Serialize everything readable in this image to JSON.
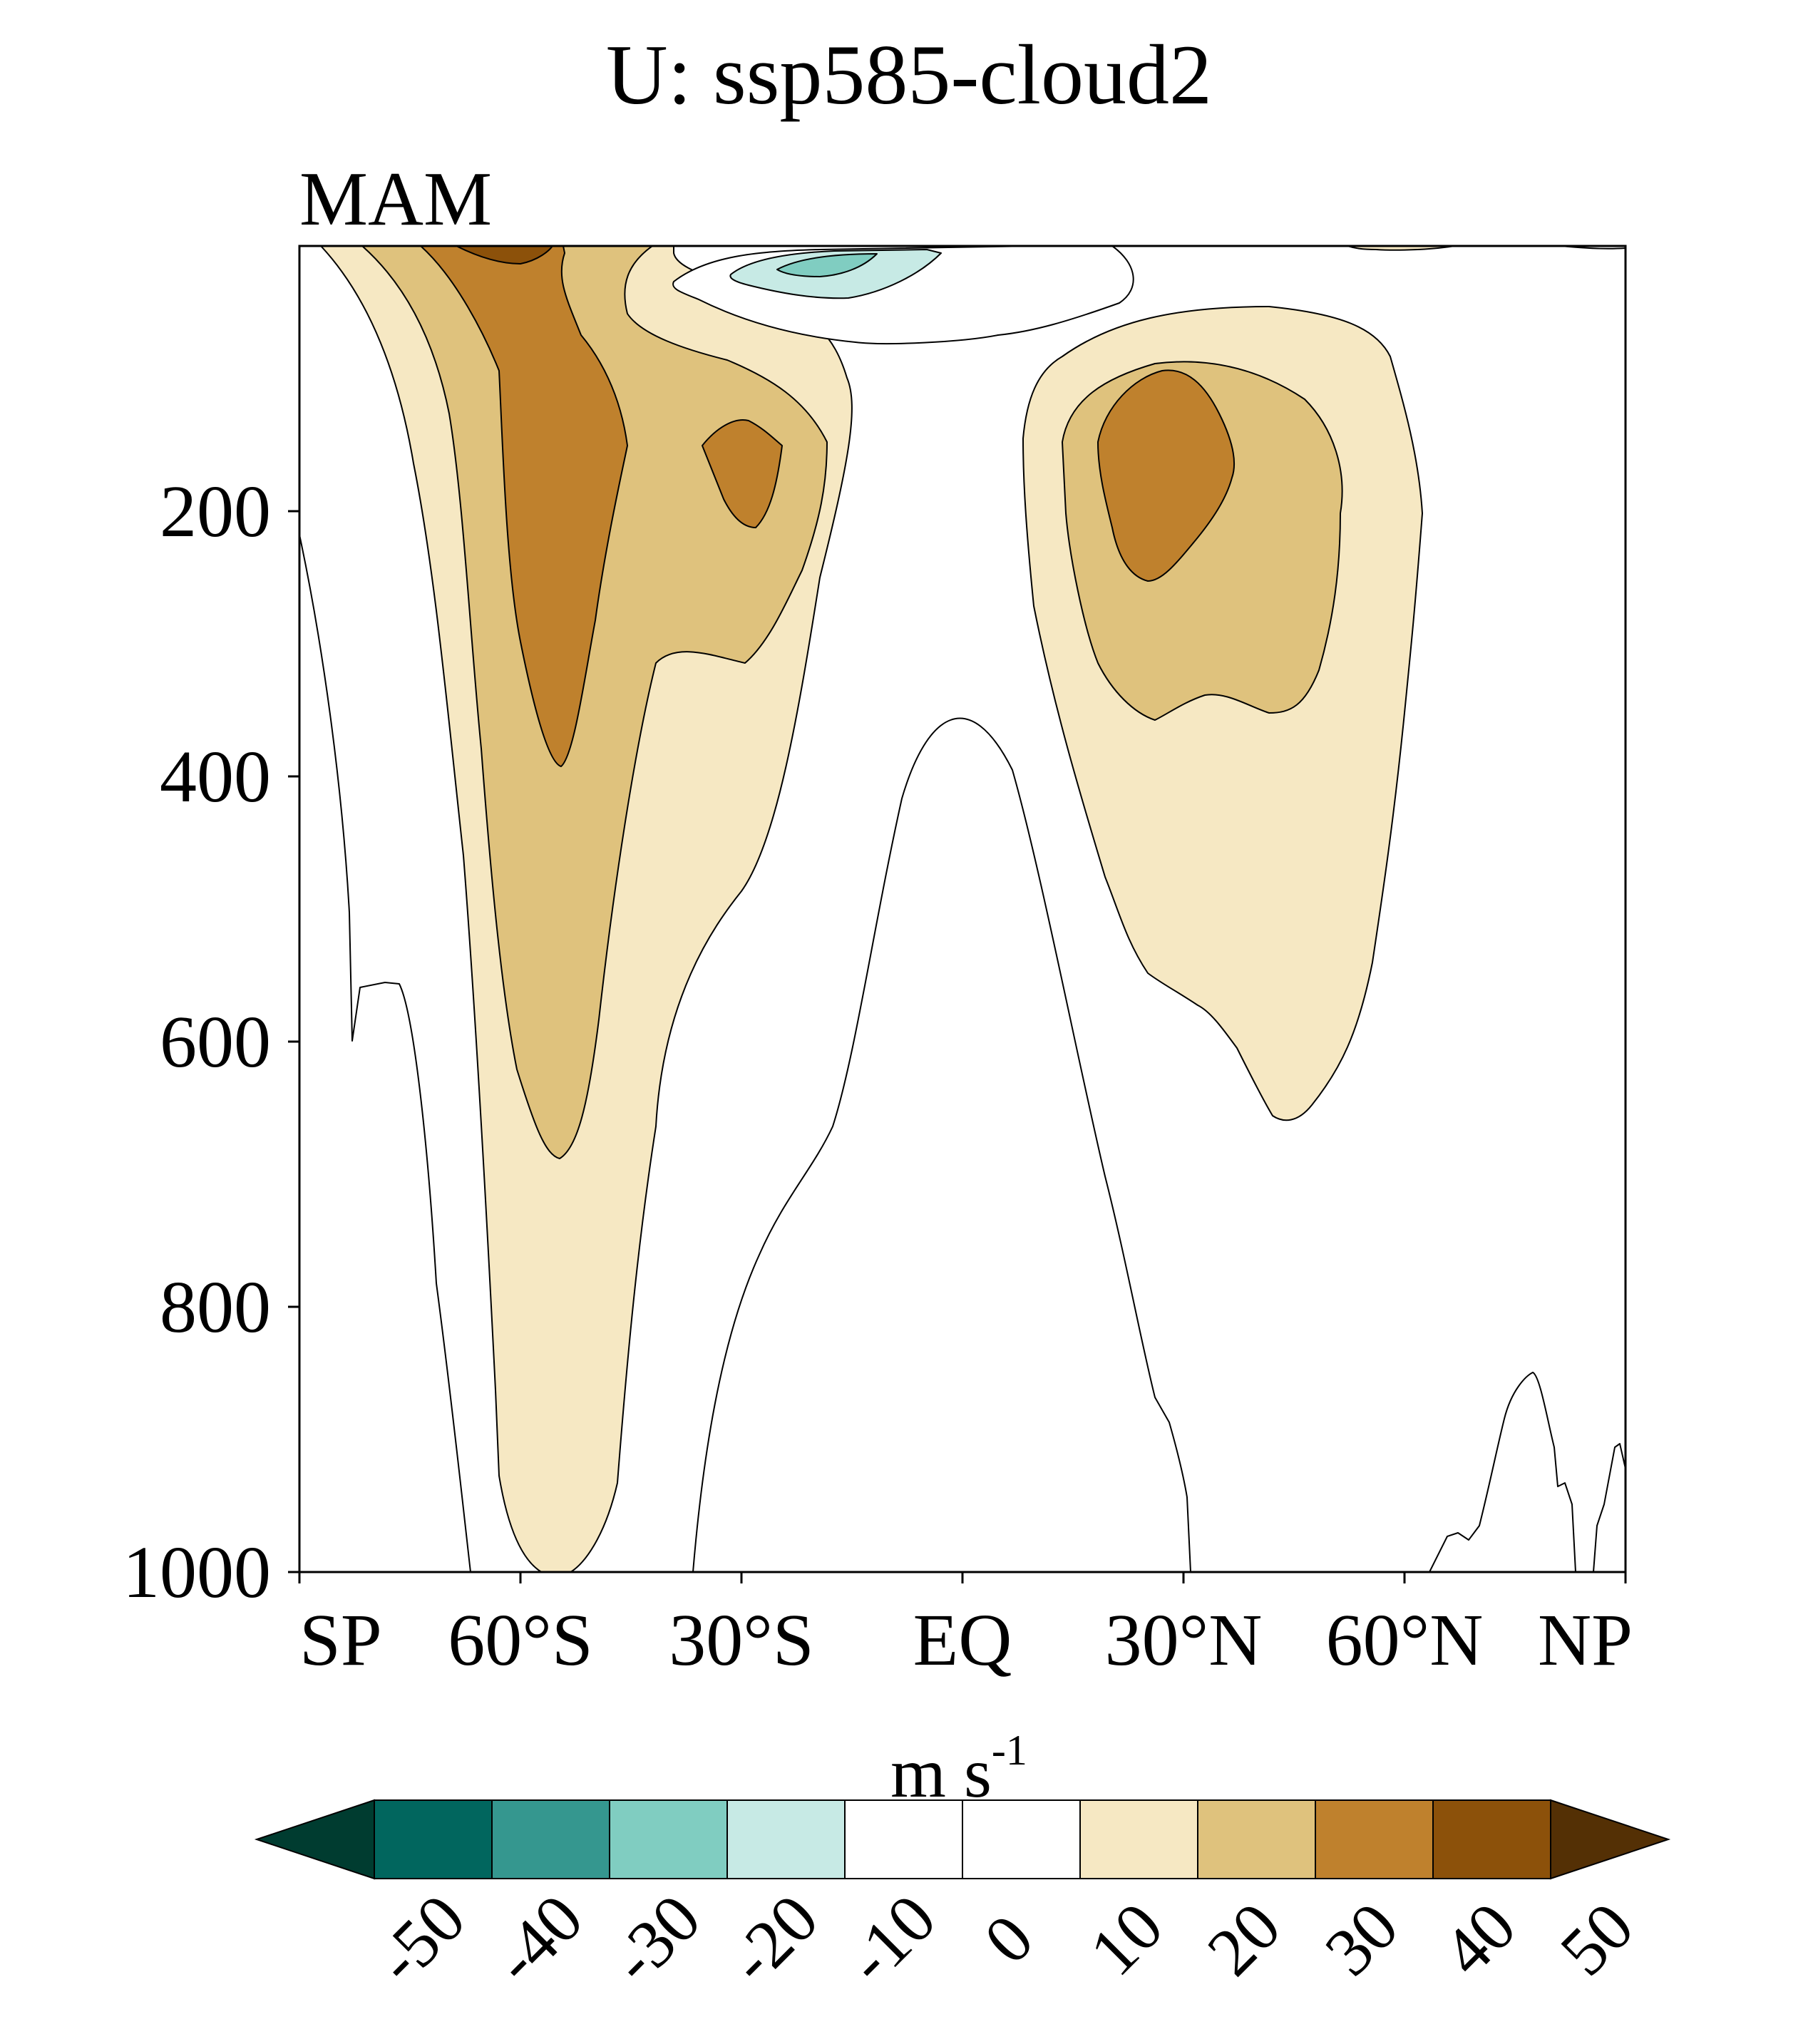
{
  "title": "U: ssp585-cloud2",
  "subtitle": "MAM",
  "colorbar": {
    "unit_base": "m s",
    "unit_exp": "-1",
    "labels": [
      "-50",
      "-40",
      "-30",
      "-20",
      "-10",
      "0",
      "10",
      "20",
      "30",
      "40",
      "50"
    ],
    "colors": [
      "#003c30",
      "#01665e",
      "#35978f",
      "#80cdc1",
      "#c7eae5",
      "#ffffff",
      "#ffffff",
      "#f6e8c3",
      "#dfc27d",
      "#bf812d",
      "#8c510a",
      "#543005"
    ]
  },
  "chart_data": {
    "type": "contour",
    "title": "U: ssp585-cloud2",
    "subtitle": "MAM",
    "variable": "U",
    "units": "m s-1",
    "x_ticks": [
      {
        "value": -90,
        "label": "SP"
      },
      {
        "value": -60,
        "label": "60°S"
      },
      {
        "value": -30,
        "label": "30°S"
      },
      {
        "value": 0,
        "label": "EQ"
      },
      {
        "value": 30,
        "label": "30°N"
      },
      {
        "value": 60,
        "label": "60°N"
      },
      {
        "value": 90,
        "label": "NP"
      }
    ],
    "y_ticks": [
      {
        "value": 200,
        "label": "200"
      },
      {
        "value": 400,
        "label": "400"
      },
      {
        "value": 600,
        "label": "600"
      },
      {
        "value": 800,
        "label": "800"
      },
      {
        "value": 1000,
        "label": "1000"
      }
    ],
    "xlim": [
      -90,
      90
    ],
    "ylim": [
      1000,
      0
    ],
    "contour_levels": [
      -50,
      -40,
      -30,
      -20,
      -10,
      0,
      10,
      20,
      30,
      40,
      50
    ],
    "features": [
      {
        "name": "southern jet",
        "max_level": 40,
        "center_lat": -57,
        "center_p": 150
      },
      {
        "name": "southern subtropical jet",
        "max_level": 30,
        "center_lat": -30,
        "center_p": 170
      },
      {
        "name": "northern subtropical jet",
        "max_level": 30,
        "center_lat": 27,
        "center_p": 160
      },
      {
        "name": "tropical easterlies",
        "min_level": -20,
        "center_lat": -10,
        "center_p": 20
      }
    ]
  }
}
